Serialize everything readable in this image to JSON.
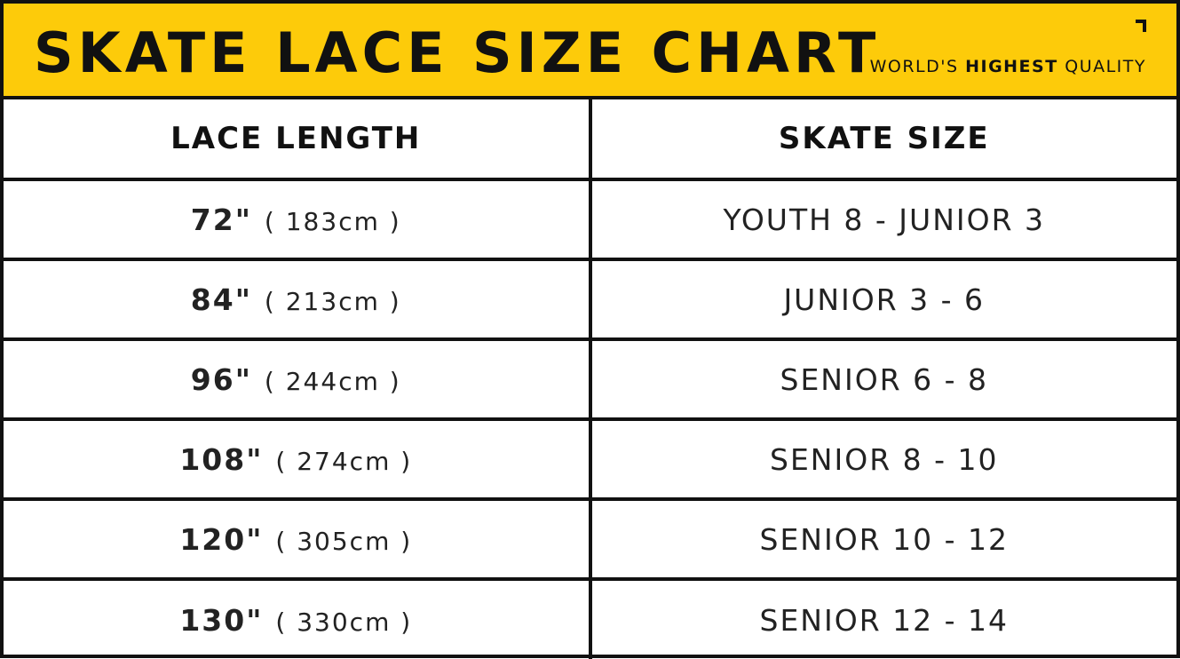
{
  "header": {
    "title": "SKATE LACE SIZE CHART",
    "tagline_pre": "WORLD'S",
    "tagline_bold": "HIGHEST",
    "tagline_post": "QUALITY",
    "accent_color": "#fdcb0a"
  },
  "table": {
    "columns": [
      "LACE LENGTH",
      "SKATE SIZE"
    ],
    "rows": [
      {
        "length": "72\"",
        "cm": "( 183cm )",
        "size": "YOUTH 8 - JUNIOR 3"
      },
      {
        "length": "84\"",
        "cm": "( 213cm )",
        "size": "JUNIOR 3 - 6"
      },
      {
        "length": "96\"",
        "cm": "( 244cm )",
        "size": "SENIOR 6 - 8"
      },
      {
        "length": "108\"",
        "cm": "( 274cm )",
        "size": "SENIOR 8 - 10"
      },
      {
        "length": "120\"",
        "cm": "( 305cm )",
        "size": "SENIOR 10 - 12"
      },
      {
        "length": "130\"",
        "cm": "( 330cm )",
        "size": "SENIOR 12 - 14"
      }
    ]
  }
}
